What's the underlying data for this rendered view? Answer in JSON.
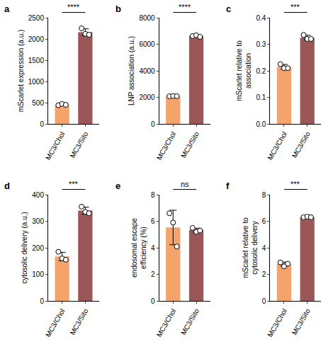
{
  "chart_data": [
    {
      "type": "bar",
      "title": "a",
      "ylabel": "mScarlet expression (a.u.)",
      "categories": [
        "MC3/Chol",
        "MC3/Sito"
      ],
      "values": [
        453,
        2157
      ],
      "points": [
        [
          440,
          470,
          450
        ],
        [
          2250,
          2120,
          2100
        ]
      ],
      "error": [
        15,
        80
      ],
      "colors": [
        "#f4a46a",
        "#9b5658"
      ],
      "ylim": [
        0,
        2500
      ],
      "yticks": [
        0,
        500,
        1000,
        1500,
        2000,
        2500
      ],
      "significance": "****"
    },
    {
      "type": "bar",
      "title": "b",
      "ylabel": "LNP association (a.u.)",
      "categories": [
        "MC3/Chol",
        "MC3/Sito"
      ],
      "values": [
        2090,
        6620
      ],
      "points": [
        [
          2080,
          2100,
          2090
        ],
        [
          6620,
          6680,
          6560
        ]
      ],
      "error": [
        10,
        60
      ],
      "colors": [
        "#f4a46a",
        "#9b5658"
      ],
      "ylim": [
        0,
        8000
      ],
      "yticks": [
        0,
        2000,
        4000,
        6000,
        8000
      ],
      "significance": "****"
    },
    {
      "type": "bar",
      "title": "c",
      "ylabel": "mScarlet relative to\nassociation",
      "categories": [
        "MC3/Chol",
        "MC3/Sito"
      ],
      "values": [
        0.215,
        0.325
      ],
      "points": [
        [
          0.225,
          0.21,
          0.21
        ],
        [
          0.335,
          0.32,
          0.32
        ]
      ],
      "error": [
        0.009,
        0.009
      ],
      "colors": [
        "#f4a46a",
        "#9b5658"
      ],
      "ylim": [
        0,
        0.4
      ],
      "yticks": [
        {
          "value": 0,
          "label": "0.0"
        },
        0.1,
        0.2,
        0.3,
        0.4
      ],
      "significance": "***"
    },
    {
      "type": "bar",
      "title": "d",
      "ylabel": "cytosolic delivery (a.u.)",
      "categories": [
        "MC3/Chol",
        "MC3/Sito"
      ],
      "values": [
        167,
        340
      ],
      "points": [
        [
          185,
          160,
          155
        ],
        [
          355,
          335,
          330
        ]
      ],
      "error": [
        16,
        13
      ],
      "colors": [
        "#f4a46a",
        "#9b5658"
      ],
      "ylim": [
        0,
        400
      ],
      "yticks": [
        0,
        100,
        200,
        300,
        400
      ],
      "significance": "***"
    },
    {
      "type": "bar",
      "title": "e",
      "ylabel": "endosomal escape\nefficiency (%)",
      "categories": [
        "MC3/Chol",
        "MC3/Sito"
      ],
      "values": [
        5.53,
        5.33
      ],
      "points": [
        [
          6.6,
          5.9,
          4.1
        ],
        [
          5.5,
          5.2,
          5.3
        ]
      ],
      "error": [
        1.3,
        0.15
      ],
      "colors": [
        "#f4a46a",
        "#9b5658"
      ],
      "ylim": [
        0,
        8
      ],
      "yticks": [
        0,
        2,
        4,
        6,
        8
      ],
      "significance": "ns"
    },
    {
      "type": "bar",
      "title": "f",
      "ylabel": "mScarlet relative to\ncytosolic delivery",
      "categories": [
        "MC3/Chol",
        "MC3/Sito"
      ],
      "values": [
        2.77,
        6.32
      ],
      "points": [
        [
          2.9,
          2.6,
          2.8
        ],
        [
          6.3,
          6.35,
          6.3
        ]
      ],
      "error": [
        0.15,
        0.03
      ],
      "colors": [
        "#f4a46a",
        "#9b5658"
      ],
      "ylim": [
        0,
        8
      ],
      "yticks": [
        0,
        2,
        4,
        6,
        8
      ],
      "significance": "***"
    }
  ]
}
